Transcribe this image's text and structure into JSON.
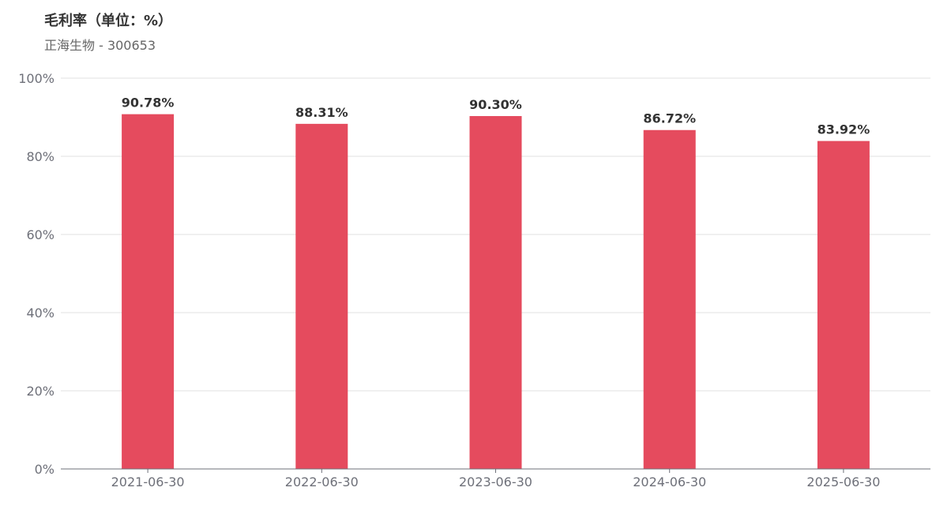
{
  "chart_data": {
    "type": "bar",
    "title": "毛利率（单位：%）",
    "subtitle": "正海生物 - 300653",
    "categories": [
      "2021-06-30",
      "2022-06-30",
      "2023-06-30",
      "2024-06-30",
      "2025-06-30"
    ],
    "values": [
      90.78,
      88.31,
      90.3,
      86.72,
      83.92
    ],
    "data_labels": [
      "90.78%",
      "88.31%",
      "90.30%",
      "86.72%",
      "83.92%"
    ],
    "ylim": [
      0,
      100
    ],
    "yticks": [
      0,
      20,
      40,
      60,
      80,
      100
    ],
    "ytick_labels": [
      "0%",
      "20%",
      "40%",
      "60%",
      "80%",
      "100%"
    ],
    "xlabel": "",
    "ylabel": "",
    "grid": true,
    "colors": {
      "bar": "#e54b5e",
      "grid": "#e0e0e0",
      "axis": "#6e7079"
    }
  }
}
